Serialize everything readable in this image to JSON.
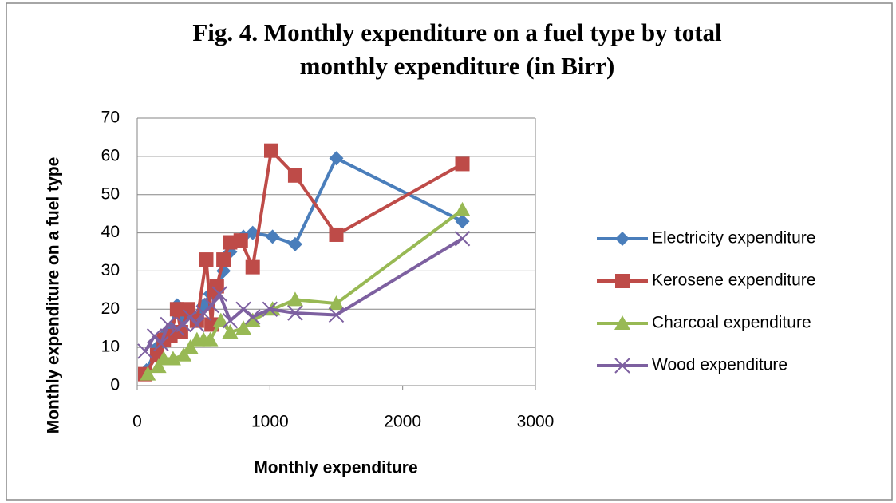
{
  "chart_data": {
    "type": "line",
    "title": [
      "Fig. 4. Monthly expenditure on a fuel type by total",
      "monthly expenditure (in Birr)"
    ],
    "xlabel": "Monthly expenditure",
    "ylabel": "Monthly expenditure on a fuel type",
    "xlim": [
      0,
      3000
    ],
    "xticks": [
      0,
      1000,
      2000,
      3000
    ],
    "ylim": [
      0,
      70
    ],
    "yticks": [
      0,
      10,
      20,
      30,
      40,
      50,
      60,
      70
    ],
    "grid": true,
    "legend": "right",
    "series": [
      {
        "name": "Electricity expenditure",
        "color": "#4a7ebb",
        "marker": "diamond",
        "x": [
          70,
          150,
          200,
          250,
          300,
          350,
          400,
          450,
          500,
          550,
          600,
          650,
          700,
          800,
          870,
          1020,
          1190,
          1500,
          2450
        ],
        "values": [
          4,
          10,
          13,
          15,
          21,
          18,
          19,
          17,
          21,
          24,
          25,
          30,
          35,
          39,
          40,
          39,
          37,
          59.5,
          43
        ]
      },
      {
        "name": "Kerosene expenditure",
        "color": "#be4b48",
        "marker": "square",
        "x": [
          60,
          150,
          200,
          250,
          300,
          330,
          380,
          450,
          520,
          560,
          580,
          600,
          650,
          700,
          780,
          870,
          1010,
          1190,
          1500,
          2450
        ],
        "values": [
          3,
          8,
          12,
          13,
          20,
          14,
          20,
          17,
          33,
          16,
          25,
          26,
          33,
          37.5,
          38,
          31,
          61.5,
          55,
          39.5,
          58
        ]
      },
      {
        "name": "Charcoal expenditure",
        "color": "#98b954",
        "marker": "triangle",
        "x": [
          80,
          160,
          200,
          270,
          350,
          400,
          450,
          500,
          550,
          630,
          700,
          800,
          870,
          1020,
          1190,
          1500,
          2450
        ],
        "values": [
          3,
          5,
          7,
          7,
          8,
          10,
          12,
          12,
          12,
          17,
          14,
          15,
          17,
          20,
          22.5,
          21.5,
          46
        ]
      },
      {
        "name": "Wood expenditure",
        "color": "#7d60a0",
        "marker": "cross",
        "x": [
          60,
          130,
          180,
          230,
          300,
          350,
          400,
          450,
          500,
          560,
          620,
          700,
          800,
          870,
          1000,
          1190,
          1500,
          2450
        ],
        "values": [
          9,
          13,
          11,
          16,
          15,
          16,
          18,
          16,
          19,
          21,
          24,
          17,
          20,
          18,
          20,
          19,
          18.5,
          38.5
        ]
      }
    ]
  }
}
